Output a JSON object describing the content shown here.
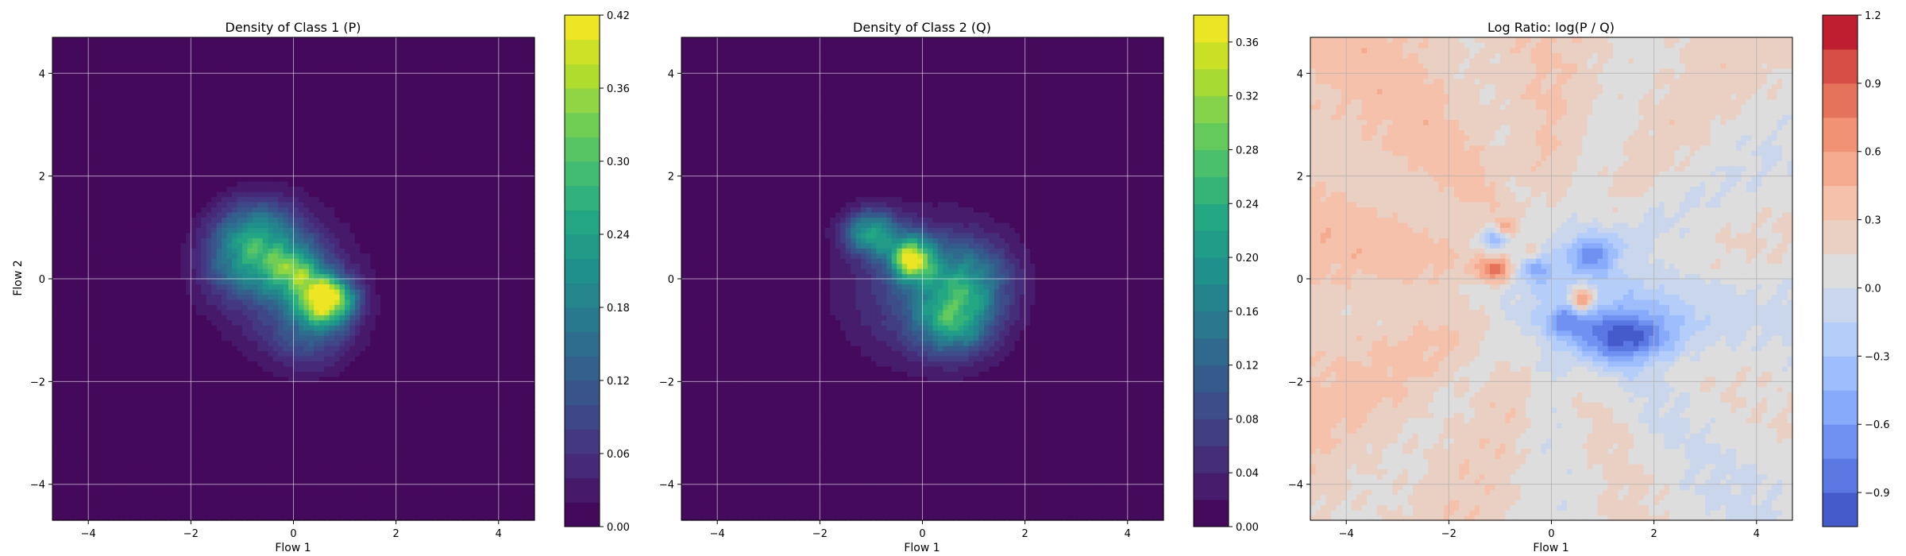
{
  "chart_data": [
    {
      "type": "heatmap",
      "title": "Density of Class 1 (P)",
      "xlabel": "Flow 1",
      "ylabel": "Flow 2",
      "xlim": [
        -4.7,
        4.7
      ],
      "ylim": [
        -4.7,
        4.7
      ],
      "x_ticks": [
        -4,
        -2,
        0,
        2,
        4
      ],
      "y_ticks": [
        -4,
        -2,
        0,
        2,
        4
      ],
      "grid": true,
      "colormap": "viridis",
      "colorbar": {
        "min": 0.0,
        "max": 0.42,
        "ticks": [
          0.0,
          0.06,
          0.12,
          0.18,
          0.24,
          0.3,
          0.36,
          0.42
        ],
        "tick_labels": [
          "0.00",
          "0.06",
          "0.12",
          "0.18",
          "0.24",
          "0.30",
          "0.36",
          "0.42"
        ],
        "levels": 21
      },
      "components": [
        {
          "x": 0.65,
          "y": -0.4,
          "sx": 0.35,
          "sy": 0.3,
          "w": 0.4
        },
        {
          "x": 0.0,
          "y": 0.15,
          "sx": 0.4,
          "sy": 0.35,
          "w": 0.22
        },
        {
          "x": -0.7,
          "y": 0.9,
          "sx": 0.55,
          "sy": 0.45,
          "w": 0.16
        },
        {
          "x": -1.0,
          "y": 0.3,
          "sx": 0.5,
          "sy": 0.45,
          "w": 0.12
        },
        {
          "x": 0.3,
          "y": -1.0,
          "sx": 0.55,
          "sy": 0.5,
          "w": 0.1
        },
        {
          "x": -0.2,
          "y": 0.0,
          "sx": 1.0,
          "sy": 0.9,
          "w": 0.08
        }
      ]
    },
    {
      "type": "heatmap",
      "title": "Density of Class 2 (Q)",
      "xlabel": "Flow 1",
      "ylabel": "",
      "xlim": [
        -4.7,
        4.7
      ],
      "ylim": [
        -4.7,
        4.7
      ],
      "x_ticks": [
        -4,
        -2,
        0,
        2,
        4
      ],
      "y_ticks": [
        -4,
        -2,
        0,
        2,
        4
      ],
      "grid": true,
      "colormap": "viridis",
      "colorbar": {
        "min": 0.0,
        "max": 0.38,
        "ticks": [
          0.0,
          0.04,
          0.08,
          0.12,
          0.16,
          0.2,
          0.24,
          0.28,
          0.32,
          0.36
        ],
        "tick_labels": [
          "0.00",
          "0.04",
          "0.08",
          "0.12",
          "0.16",
          "0.20",
          "0.24",
          "0.28",
          "0.32",
          "0.36"
        ],
        "levels": 19
      },
      "components": [
        {
          "x": -0.2,
          "y": 0.4,
          "sx": 0.3,
          "sy": 0.3,
          "w": 0.3
        },
        {
          "x": -1.0,
          "y": 0.9,
          "sx": 0.35,
          "sy": 0.3,
          "w": 0.2
        },
        {
          "x": 0.6,
          "y": -0.8,
          "sx": 0.5,
          "sy": 0.45,
          "w": 0.17
        },
        {
          "x": 0.9,
          "y": 0.0,
          "sx": 0.55,
          "sy": 0.5,
          "w": 0.12
        },
        {
          "x": 0.1,
          "y": -0.2,
          "sx": 1.1,
          "sy": 0.95,
          "w": 0.09
        }
      ]
    },
    {
      "type": "heatmap",
      "title": "Log Ratio: log(P / Q)",
      "xlabel": "Flow 1",
      "ylabel": "",
      "xlim": [
        -4.7,
        4.7
      ],
      "ylim": [
        -4.7,
        4.7
      ],
      "x_ticks": [
        -4,
        -2,
        0,
        2,
        4
      ],
      "y_ticks": [
        -4,
        -2,
        0,
        2,
        4
      ],
      "grid": true,
      "colormap": "coolwarm",
      "colorbar": {
        "min": -1.05,
        "max": 1.2,
        "ticks": [
          -0.9,
          -0.6,
          -0.3,
          0.0,
          0.3,
          0.6,
          0.9,
          1.2
        ],
        "tick_labels": [
          "−0.9",
          "−0.6",
          "−0.3",
          "0.0",
          "0.3",
          "0.6",
          "0.9",
          "1.2"
        ],
        "levels": 15
      },
      "features": [
        {
          "x": 0.6,
          "y": -0.4,
          "sx": 0.18,
          "sy": 0.18,
          "w": 0.9
        },
        {
          "x": -1.1,
          "y": 0.2,
          "sx": 0.25,
          "sy": 0.18,
          "w": 0.75
        },
        {
          "x": -0.9,
          "y": 1.0,
          "sx": 0.15,
          "sy": 0.15,
          "w": 0.5
        },
        {
          "x": -0.4,
          "y": 0.6,
          "sx": 0.12,
          "sy": 0.12,
          "w": 0.35
        },
        {
          "x": 1.5,
          "y": -1.1,
          "sx": 0.7,
          "sy": 0.35,
          "w": -0.95
        },
        {
          "x": -1.1,
          "y": 0.8,
          "sx": 0.2,
          "sy": 0.15,
          "w": -0.6
        },
        {
          "x": 0.8,
          "y": 0.5,
          "sx": 0.3,
          "sy": 0.25,
          "w": -0.6
        },
        {
          "x": 0.3,
          "y": -0.8,
          "sx": 0.25,
          "sy": 0.2,
          "w": -0.5
        },
        {
          "x": -0.3,
          "y": 0.2,
          "sx": 0.2,
          "sy": 0.15,
          "w": -0.45
        },
        {
          "x": 0.7,
          "y": -0.3,
          "sx": 1.3,
          "sy": 0.9,
          "w": -0.25
        }
      ]
    }
  ]
}
